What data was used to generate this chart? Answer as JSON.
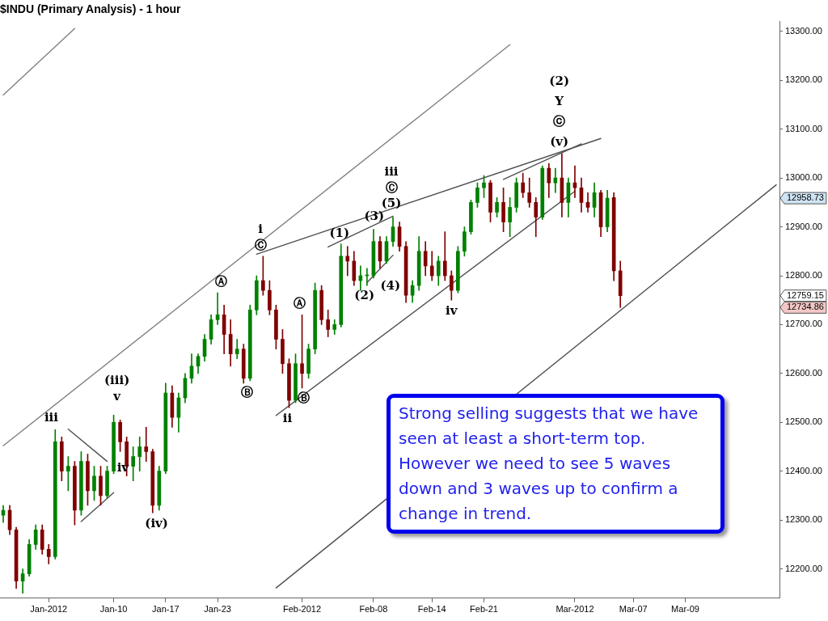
{
  "chart_data": {
    "type": "candlestick",
    "title": "$INDU (Primary Analysis) - 1 hour",
    "categories": [
      null,
      null,
      null,
      null,
      null,
      null,
      null,
      "Jan-2012",
      null,
      null,
      null,
      null,
      null,
      null,
      null,
      null,
      null,
      "Jan-10",
      null,
      null,
      null,
      null,
      null,
      null,
      null,
      "Jan-17",
      null,
      null,
      null,
      null,
      null,
      null,
      null,
      "Jan-23",
      null,
      null,
      null,
      null,
      null,
      null,
      null,
      null,
      null,
      null,
      null,
      null,
      "Feb-2012",
      null,
      null,
      null,
      null,
      null,
      null,
      null,
      null,
      null,
      null,
      "Feb-08",
      null,
      null,
      null,
      null,
      null,
      null,
      null,
      null,
      "Feb-14",
      null,
      null,
      null,
      null,
      null,
      null,
      null,
      "Feb-21",
      null,
      null,
      null,
      null,
      null,
      null,
      null,
      null,
      null,
      null,
      null,
      null,
      null,
      "Mar-2012",
      null,
      null,
      null,
      null,
      null,
      null,
      null,
      null,
      "Mar-07",
      null,
      null,
      null,
      null,
      null,
      null,
      null,
      "Mar-09",
      null,
      null,
      null,
      null,
      null,
      null,
      null,
      null,
      null,
      null,
      null,
      null,
      null,
      null
    ],
    "ohlc": [
      [
        12310,
        12330,
        12295,
        12320
      ],
      [
        12320,
        12330,
        12270,
        12280
      ],
      [
        12280,
        12285,
        12160,
        12175
      ],
      [
        12175,
        12200,
        12150,
        12190
      ],
      [
        12190,
        12260,
        12185,
        12250
      ],
      [
        12250,
        12290,
        12240,
        12280
      ],
      [
        12280,
        12290,
        12230,
        12240
      ],
      [
        12240,
        12250,
        12210,
        12225
      ],
      [
        12225,
        12485,
        12220,
        12460
      ],
      [
        12460,
        12470,
        12380,
        12400
      ],
      [
        12400,
        12430,
        12360,
        12410
      ],
      [
        12410,
        12420,
        12290,
        12320
      ],
      [
        12320,
        12440,
        12310,
        12420
      ],
      [
        12420,
        12435,
        12330,
        12360
      ],
      [
        12360,
        12410,
        12340,
        12390
      ],
      [
        12390,
        12410,
        12330,
        12350
      ],
      [
        12350,
        12410,
        12345,
        12400
      ],
      [
        12400,
        12515,
        12395,
        12500
      ],
      [
        12500,
        12505,
        12440,
        12460
      ],
      [
        12460,
        12470,
        12390,
        12410
      ],
      [
        12410,
        12450,
        12380,
        12430
      ],
      [
        12430,
        12470,
        12400,
        12450
      ],
      [
        12450,
        12490,
        12420,
        12440
      ],
      [
        12440,
        12445,
        12315,
        12330
      ],
      [
        12330,
        12410,
        12320,
        12400
      ],
      [
        12400,
        12580,
        12395,
        12560
      ],
      [
        12560,
        12575,
        12490,
        12510
      ],
      [
        12510,
        12560,
        12480,
        12550
      ],
      [
        12550,
        12600,
        12540,
        12590
      ],
      [
        12590,
        12640,
        12580,
        12615
      ],
      [
        12615,
        12640,
        12600,
        12635
      ],
      [
        12635,
        12680,
        12625,
        12670
      ],
      [
        12670,
        12720,
        12660,
        12710
      ],
      [
        12710,
        12765,
        12700,
        12720
      ],
      [
        12720,
        12740,
        12640,
        12680
      ],
      [
        12680,
        12710,
        12615,
        12640
      ],
      [
        12640,
        12670,
        12630,
        12650
      ],
      [
        12650,
        12660,
        12580,
        12590
      ],
      [
        12590,
        12740,
        12585,
        12730
      ],
      [
        12730,
        12800,
        12720,
        12790
      ],
      [
        12790,
        12840,
        12760,
        12770
      ],
      [
        12770,
        12790,
        12720,
        12730
      ],
      [
        12730,
        12740,
        12650,
        12670
      ],
      [
        12670,
        12690,
        12600,
        12620
      ],
      [
        12620,
        12630,
        12530,
        12545
      ],
      [
        12545,
        12640,
        12540,
        12620
      ],
      [
        12620,
        12720,
        12570,
        12600
      ],
      [
        12600,
        12660,
        12590,
        12650
      ],
      [
        12650,
        12785,
        12640,
        12770
      ],
      [
        12770,
        12780,
        12700,
        12710
      ],
      [
        12710,
        12730,
        12675,
        12690
      ],
      [
        12690,
        12710,
        12680,
        12700
      ],
      [
        12700,
        12865,
        12695,
        12840
      ],
      [
        12840,
        12860,
        12800,
        12830
      ],
      [
        12830,
        12850,
        12780,
        12790
      ],
      [
        12790,
        12820,
        12770,
        12800
      ],
      [
        12800,
        12815,
        12780,
        12800
      ],
      [
        12800,
        12895,
        12795,
        12870
      ],
      [
        12870,
        12880,
        12815,
        12830
      ],
      [
        12830,
        12880,
        12825,
        12870
      ],
      [
        12870,
        12920,
        12860,
        12900
      ],
      [
        12900,
        12910,
        12850,
        12860
      ],
      [
        12860,
        12870,
        12745,
        12760
      ],
      [
        12760,
        12790,
        12745,
        12780
      ],
      [
        12780,
        12880,
        12770,
        12850
      ],
      [
        12850,
        12870,
        12800,
        12820
      ],
      [
        12820,
        12850,
        12790,
        12800
      ],
      [
        12800,
        12840,
        12780,
        12830
      ],
      [
        12830,
        12890,
        12790,
        12800
      ],
      [
        12800,
        12810,
        12750,
        12770
      ],
      [
        12770,
        12860,
        12765,
        12850
      ],
      [
        12850,
        12900,
        12840,
        12890
      ],
      [
        12890,
        12955,
        12885,
        12950
      ],
      [
        12950,
        12990,
        12940,
        12980
      ],
      [
        12980,
        13005,
        12960,
        12990
      ],
      [
        12990,
        12995,
        12910,
        12930
      ],
      [
        12930,
        12960,
        12920,
        12950
      ],
      [
        12950,
        12980,
        12890,
        12910
      ],
      [
        12910,
        12960,
        12880,
        12940
      ],
      [
        12940,
        13000,
        12930,
        12990
      ],
      [
        12990,
        13010,
        12960,
        12970
      ],
      [
        12970,
        13000,
        12940,
        12950
      ],
      [
        12950,
        12960,
        12880,
        12920
      ],
      [
        12920,
        13025,
        12915,
        13020
      ],
      [
        13020,
        13030,
        12960,
        12990
      ],
      [
        12990,
        13020,
        12970,
        13000
      ],
      [
        13000,
        13050,
        12920,
        12950
      ],
      [
        12950,
        13000,
        12920,
        12990
      ],
      [
        12990,
        13025,
        12960,
        12980
      ],
      [
        12980,
        13000,
        12930,
        12950
      ],
      [
        12950,
        12970,
        12930,
        12940
      ],
      [
        12940,
        12990,
        12920,
        12970
      ],
      [
        12970,
        12975,
        12880,
        12900
      ],
      [
        12900,
        12975,
        12890,
        12958.73
      ],
      [
        12960,
        12970,
        12790,
        12810
      ],
      [
        12810,
        12830,
        12734.86,
        12759.15
      ],
      null,
      null,
      null,
      null,
      null,
      null,
      null,
      null,
      null,
      null,
      null,
      null,
      null,
      null,
      null,
      null,
      null,
      null,
      null,
      null,
      null,
      null,
      null,
      null
    ],
    "colors": [
      "#008000",
      "#800000",
      "#800000",
      "#008000",
      "#008000",
      "#008000",
      "#800000",
      "#800000",
      "#008000",
      "#800000",
      "#008000",
      "#800000",
      "#008000",
      "#800000",
      "#008000",
      "#800000",
      "#008000",
      "#008000",
      "#800000",
      "#800000",
      "#008000",
      "#008000",
      "#800000",
      "#800000",
      "#008000",
      "#008000",
      "#800000",
      "#008000",
      "#008000",
      "#008000",
      "#008000",
      "#008000",
      "#008000",
      "#008000",
      "#800000",
      "#800000",
      "#008000",
      "#800000",
      "#008000",
      "#008000",
      "#800000",
      "#800000",
      "#800000",
      "#800000",
      "#800000",
      "#008000",
      "#800000",
      "#008000",
      "#008000",
      "#800000",
      "#800000",
      "#008000",
      "#008000",
      "#800000",
      "#800000",
      "#008000",
      "#008000",
      "#008000",
      "#800000",
      "#008000",
      "#008000",
      "#800000",
      "#800000",
      "#008000",
      "#008000",
      "#800000",
      "#800000",
      "#008000",
      "#800000",
      "#800000",
      "#008000",
      "#008000",
      "#008000",
      "#008000",
      "#008000",
      "#800000",
      "#008000",
      "#800000",
      "#008000",
      "#008000",
      "#800000",
      "#800000",
      "#800000",
      "#008000",
      "#800000",
      "#008000",
      "#800000",
      "#008000",
      "#800000",
      "#800000",
      "#800000",
      "#008000",
      "#800000",
      "#008000",
      "#800000",
      "#800000",
      null,
      null,
      null,
      null,
      null,
      null,
      null,
      null,
      null,
      null,
      null,
      null,
      null,
      null,
      null,
      null,
      null,
      null,
      null,
      null,
      null,
      null,
      null,
      null
    ],
    "series": [
      {
        "type": "line",
        "color": "#808080",
        "values": [
          13170,
          null,
          null,
          null,
          null,
          null,
          null,
          null,
          null,
          null,
          null,
          13306,
          null,
          null,
          null,
          null,
          null,
          null,
          null,
          null,
          null,
          null,
          null,
          null,
          null,
          null,
          null,
          null,
          null,
          null,
          null,
          null,
          null,
          null,
          null,
          null,
          null,
          null,
          null,
          null,
          null,
          null,
          null,
          null,
          null,
          null,
          null,
          null,
          null,
          null,
          null,
          null,
          null,
          null,
          null,
          null,
          null,
          null,
          null,
          null,
          null,
          null,
          null,
          null,
          null,
          null,
          null,
          null,
          null,
          null,
          null,
          null,
          null,
          null,
          null,
          null,
          null,
          null,
          null,
          null,
          null,
          null,
          null,
          null,
          null,
          null,
          null,
          null,
          null,
          null,
          null,
          null,
          null,
          null,
          null,
          null,
          null,
          null,
          null,
          null,
          null,
          null,
          null,
          null,
          null,
          null,
          null,
          null,
          null,
          null,
          null,
          null,
          null,
          null,
          null,
          null,
          null,
          null,
          null,
          null
        ]
      },
      {
        "type": "line",
        "color": "#808080",
        "values": [
          12452,
          null,
          null,
          null,
          null,
          null,
          null,
          null,
          null,
          null,
          null,
          null,
          null,
          null,
          null,
          null,
          null,
          null,
          null,
          null,
          null,
          null,
          null,
          null,
          null,
          null,
          null,
          null,
          null,
          null,
          null,
          null,
          null,
          null,
          null,
          null,
          null,
          null,
          null,
          null,
          null,
          null,
          null,
          null,
          null,
          null,
          null,
          null,
          null,
          null,
          null,
          null,
          null,
          null,
          null,
          null,
          null,
          null,
          null,
          null,
          null,
          null,
          null,
          null,
          null,
          null,
          null,
          null,
          null,
          null,
          null,
          null,
          null,
          null,
          null,
          null,
          null,
          null,
          13273,
          null,
          null,
          null,
          null,
          null,
          null,
          null,
          null,
          null,
          null,
          null,
          null,
          null,
          null,
          null,
          null,
          null,
          null,
          null,
          null,
          null,
          null,
          null,
          null,
          null,
          null,
          null,
          null,
          null,
          null,
          null,
          null,
          null,
          null,
          null,
          null,
          null,
          null,
          null,
          null,
          null
        ]
      },
      {
        "type": "line",
        "color": "#505050",
        "values": [
          null,
          null,
          null,
          null,
          null,
          null,
          null,
          null,
          null,
          null,
          null,
          null,
          null,
          null,
          null,
          null,
          null,
          null,
          null,
          null,
          null,
          null,
          null,
          null,
          null,
          null,
          null,
          null,
          null,
          null,
          null,
          null,
          null,
          null,
          null,
          null,
          null,
          null,
          null,
          null,
          null,
          null,
          12161,
          null,
          null,
          null,
          null,
          null,
          null,
          null,
          null,
          null,
          null,
          null,
          null,
          null,
          null,
          null,
          null,
          null,
          null,
          null,
          null,
          null,
          null,
          null,
          null,
          null,
          null,
          null,
          null,
          null,
          null,
          null,
          null,
          null,
          null,
          null,
          null,
          null,
          null,
          null,
          null,
          null,
          null,
          null,
          null,
          null,
          null,
          null,
          null,
          null,
          null,
          null,
          null,
          null,
          null,
          null,
          null,
          null,
          null,
          null,
          null,
          null,
          null,
          null,
          null,
          null,
          null,
          null,
          null,
          null,
          null,
          null,
          null,
          null,
          null,
          null,
          null,
          12986
        ]
      },
      {
        "type": "line",
        "color": "#505050",
        "values": [
          null,
          null,
          null,
          null,
          null,
          null,
          null,
          null,
          null,
          null,
          null,
          null,
          null,
          null,
          null,
          null,
          null,
          null,
          null,
          null,
          null,
          null,
          null,
          null,
          null,
          null,
          null,
          null,
          null,
          null,
          null,
          null,
          null,
          null,
          null,
          null,
          null,
          null,
          null,
          12844,
          null,
          null,
          null,
          null,
          null,
          null,
          null,
          null,
          null,
          null,
          null,
          null,
          null,
          null,
          null,
          null,
          null,
          null,
          null,
          null,
          null,
          null,
          null,
          null,
          null,
          null,
          null,
          null,
          null,
          null,
          null,
          null,
          null,
          null,
          null,
          null,
          null,
          null,
          null,
          null,
          null,
          null,
          null,
          null,
          null,
          null,
          null,
          null,
          null,
          null,
          null,
          null,
          13081,
          null,
          null,
          null,
          null,
          null,
          null,
          null,
          null,
          null,
          null,
          null,
          null,
          null,
          null,
          null,
          null,
          null,
          null,
          null,
          null,
          null,
          null,
          null,
          null,
          null,
          null,
          null
        ]
      },
      {
        "type": "line",
        "color": "#505050",
        "values": [
          null,
          null,
          null,
          null,
          null,
          null,
          null,
          null,
          null,
          null,
          null,
          null,
          null,
          null,
          null,
          null,
          null,
          null,
          null,
          null,
          null,
          null,
          null,
          null,
          null,
          null,
          null,
          null,
          null,
          null,
          null,
          null,
          null,
          null,
          null,
          null,
          null,
          null,
          null,
          null,
          null,
          null,
          12514,
          null,
          null,
          null,
          null,
          null,
          null,
          null,
          null,
          null,
          null,
          null,
          null,
          null,
          null,
          null,
          null,
          null,
          null,
          null,
          null,
          null,
          null,
          null,
          null,
          null,
          null,
          null,
          null,
          null,
          null,
          null,
          null,
          null,
          null,
          null,
          null,
          null,
          null,
          null,
          null,
          null,
          null,
          null,
          null,
          null,
          12973,
          null,
          null,
          null,
          null,
          null,
          null,
          null,
          null,
          null,
          null,
          null,
          null,
          null,
          null,
          null,
          null,
          null,
          null,
          null,
          null,
          null,
          null,
          null,
          null,
          null,
          null,
          null,
          null,
          null,
          null,
          null
        ]
      },
      {
        "type": "line",
        "color": "#505050",
        "values": [
          null,
          null,
          null,
          null,
          null,
          null,
          null,
          null,
          null,
          null,
          null,
          null,
          null,
          null,
          null,
          null,
          null,
          null,
          null,
          null,
          null,
          null,
          null,
          null,
          null,
          null,
          null,
          null,
          null,
          null,
          null,
          null,
          null,
          null,
          null,
          null,
          null,
          null,
          null,
          null,
          null,
          null,
          null,
          null,
          null,
          null,
          null,
          null,
          null,
          null,
          12859,
          null,
          null,
          null,
          null,
          null,
          null,
          null,
          null,
          null,
          12922,
          null,
          null,
          null,
          null,
          null,
          null,
          null,
          null,
          null,
          null,
          null,
          null,
          null,
          null,
          null,
          null,
          null,
          null,
          null,
          null,
          null,
          null,
          null,
          null,
          null,
          null,
          null,
          null,
          null,
          null,
          null,
          null,
          null,
          null,
          null,
          null,
          null,
          null,
          null,
          null,
          null,
          null,
          null,
          null,
          null,
          null,
          null,
          null,
          null,
          null,
          null,
          null,
          null,
          null,
          null,
          null,
          null,
          null,
          null
        ]
      },
      {
        "type": "line",
        "color": "#505050",
        "values": [
          null,
          null,
          null,
          null,
          null,
          null,
          null,
          null,
          null,
          null,
          null,
          null,
          null,
          null,
          null,
          null,
          null,
          null,
          null,
          null,
          null,
          null,
          null,
          null,
          null,
          null,
          null,
          null,
          null,
          null,
          null,
          null,
          null,
          null,
          null,
          null,
          null,
          null,
          null,
          null,
          null,
          null,
          null,
          null,
          null,
          null,
          null,
          null,
          null,
          null,
          null,
          null,
          null,
          null,
          null,
          null,
          12786,
          null,
          null,
          null,
          12842,
          null,
          null,
          null,
          null,
          null,
          null,
          null,
          null,
          null,
          null,
          null,
          null,
          null,
          null,
          null,
          null,
          null,
          null,
          null,
          null,
          null,
          null,
          null,
          null,
          null,
          null,
          null,
          null,
          null,
          null,
          null,
          null,
          null,
          null,
          null,
          null,
          null,
          null,
          null,
          null,
          null,
          null,
          null,
          null,
          null,
          null,
          null,
          null,
          null,
          null,
          null,
          null,
          null,
          null,
          null,
          null,
          null,
          null,
          null
        ]
      },
      {
        "type": "line",
        "color": "#505050",
        "values": [
          null,
          null,
          null,
          null,
          null,
          null,
          null,
          null,
          null,
          null,
          null,
          null,
          null,
          null,
          null,
          null,
          null,
          null,
          null,
          null,
          null,
          null,
          null,
          null,
          null,
          null,
          null,
          null,
          null,
          null,
          null,
          null,
          null,
          null,
          null,
          null,
          null,
          null,
          null,
          null,
          null,
          null,
          null,
          null,
          null,
          null,
          null,
          null,
          null,
          null,
          null,
          null,
          null,
          null,
          null,
          null,
          null,
          null,
          null,
          null,
          null,
          null,
          null,
          null,
          null,
          null,
          null,
          null,
          null,
          null,
          null,
          null,
          null,
          null,
          null,
          null,
          null,
          12997,
          null,
          null,
          null,
          null,
          null,
          null,
          null,
          null,
          null,
          null,
          null,
          13070,
          null,
          null,
          null,
          null,
          null,
          null,
          null,
          null,
          null,
          null,
          null,
          null,
          null,
          null,
          null,
          null,
          null,
          null,
          null,
          null,
          null,
          null,
          null,
          null,
          null,
          null,
          null,
          null,
          null,
          null
        ]
      },
      {
        "type": "line",
        "color": "#505050",
        "values": [
          null,
          null,
          null,
          null,
          null,
          null,
          null,
          null,
          null,
          null,
          12486,
          null,
          null,
          null,
          null,
          null,
          12420,
          null,
          null,
          null,
          null,
          null,
          null,
          null,
          null,
          null,
          null,
          null,
          null,
          null,
          null,
          null,
          null,
          null,
          null,
          null,
          null,
          null,
          null,
          null,
          null,
          null,
          null,
          null,
          null,
          null,
          null,
          null,
          null,
          null,
          null,
          null,
          null,
          null,
          null,
          null,
          null,
          null,
          null,
          null,
          null,
          null,
          null,
          null,
          null,
          null,
          null,
          null,
          null,
          null,
          null,
          null,
          null,
          null,
          null,
          null,
          null,
          null,
          null,
          null,
          null,
          null,
          null,
          null,
          null,
          null,
          null,
          null,
          null,
          null,
          null,
          null,
          null,
          null,
          null,
          null,
          null,
          null,
          null,
          null,
          null,
          null,
          null,
          null,
          null,
          null,
          null,
          null,
          null,
          null,
          null,
          null,
          null,
          null,
          null,
          null,
          null,
          null,
          null,
          null
        ]
      },
      {
        "type": "line",
        "color": "#505050",
        "values": [
          null,
          null,
          null,
          null,
          null,
          null,
          null,
          null,
          null,
          null,
          null,
          null,
          12297,
          null,
          null,
          null,
          null,
          12356,
          null,
          null,
          null,
          null,
          null,
          null,
          null,
          null,
          null,
          null,
          null,
          null,
          null,
          null,
          null,
          null,
          null,
          null,
          null,
          null,
          null,
          null,
          null,
          null,
          null,
          null,
          null,
          null,
          null,
          null,
          null,
          null,
          null,
          null,
          null,
          null,
          null,
          null,
          null,
          null,
          null,
          null,
          null,
          null,
          null,
          null,
          null,
          null,
          null,
          null,
          null,
          null,
          null,
          null,
          null,
          null,
          null,
          null,
          null,
          null,
          null,
          null,
          null,
          null,
          null,
          null,
          null,
          null,
          null,
          null,
          null,
          null,
          null,
          null,
          null,
          null,
          null,
          null,
          null,
          null,
          null,
          null,
          null,
          null,
          null,
          null,
          null,
          null,
          null,
          null,
          null,
          null,
          null,
          null,
          null,
          null,
          null,
          null,
          null,
          null,
          null,
          null
        ]
      }
    ],
    "ylim": [
      12140,
      13320
    ],
    "yticks": [
      {
        "value": 12200,
        "label": "12200.00"
      },
      {
        "value": 12300,
        "label": "12300.00"
      },
      {
        "value": 12400,
        "label": "12400.00"
      },
      {
        "value": 12500,
        "label": "12500.00"
      },
      {
        "value": 12600,
        "label": "12600.00"
      },
      {
        "value": 12700,
        "label": "12700.00"
      },
      {
        "value": 12800,
        "label": "12800.00"
      },
      {
        "value": 12900,
        "label": "12900.00"
      },
      {
        "value": 13000,
        "label": "13000.00"
      },
      {
        "value": 13100,
        "label": "13100.00"
      },
      {
        "value": 13200,
        "label": "13200.00"
      },
      {
        "value": 13300,
        "label": "13300.00"
      }
    ],
    "annotations": [
      "iii",
      "iv",
      "v",
      "(iii)",
      "(iv)",
      "Ⓐ",
      "Ⓑ",
      "Ⓒ",
      "i",
      "ii",
      "Ⓐ",
      "Ⓑ",
      "(1)",
      "(2)",
      "(3)",
      "(4)",
      "(5)",
      "Ⓒ",
      "iii",
      "iv",
      "(v)",
      "ⓒ",
      "Y",
      "(2)",
      "12958.73",
      "12759.15",
      "12734.86",
      "Strong selling suggests that we have seen at least a short-term top. However we need to see 5 waves down and 3 waves up to confirm a change in trend."
    ]
  }
}
